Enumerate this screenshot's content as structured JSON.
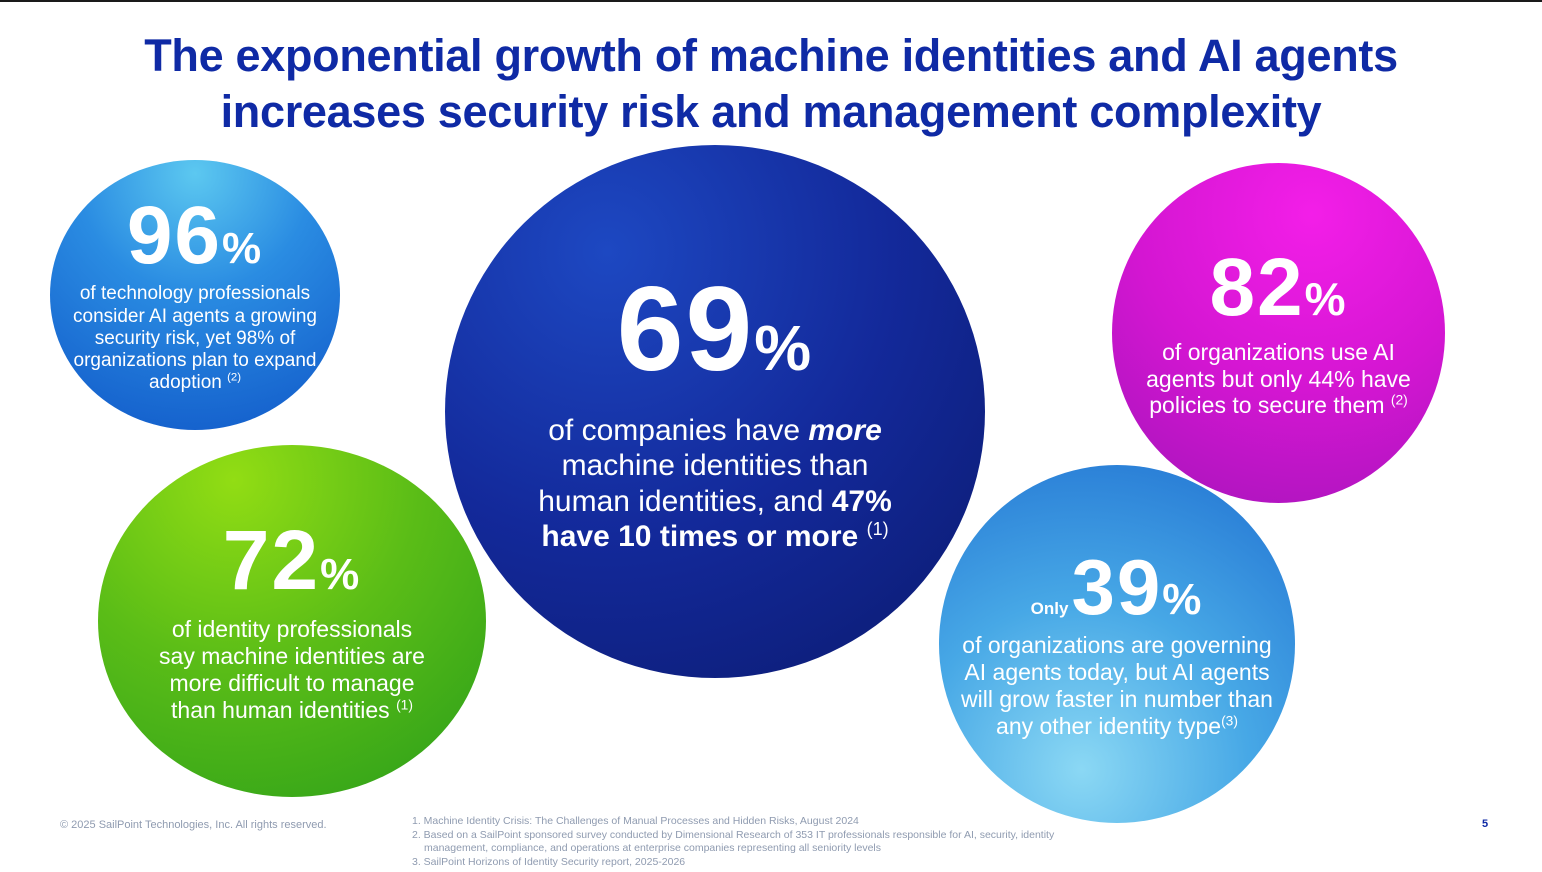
{
  "slide": {
    "title_line1": "The exponential growth of machine identities and AI agents",
    "title_line2": "increases security risk and management complexity",
    "page_number": "5",
    "copyright": "© 2025 SailPoint Technologies, Inc. All rights reserved."
  },
  "stats": {
    "s96": {
      "value": "96",
      "unit": "%",
      "text": "of technology professionals consider AI agents a growing security risk, yet 98% of organizations plan to expand adoption",
      "ref": "(2)",
      "color": "#1f7ad8"
    },
    "s72": {
      "value": "72",
      "unit": "%",
      "text": "of identity professionals say machine identities are more difficult to manage than human identities",
      "ref": "(1)",
      "color": "#4fb619"
    },
    "s69": {
      "value": "69",
      "unit": "%",
      "text_pre": "of companies have",
      "text_em": "more",
      "text_mid": "machine identities than human identities, and",
      "text_bold": "47% have 10 times or more",
      "ref": "(1)",
      "color": "#13299a"
    },
    "s82": {
      "value": "82",
      "unit": "%",
      "text": "of organizations use AI agents but only 44% have policies to secure them",
      "ref": "(2)",
      "color": "#d416d2"
    },
    "s39": {
      "prefix": "Only",
      "value": "39",
      "unit": "%",
      "text": "of organizations are governing AI agents today, but AI agents will grow faster in number than any other identity type",
      "ref": "(3)",
      "color": "#47a8e6"
    }
  },
  "footnotes": [
    "1. Machine Identity Crisis: The Challenges of Manual Processes and Hidden Risks, August 2024",
    "2. Based on a SailPoint sponsored survey conducted by Dimensional Research of 353 IT professionals responsible for AI, security, identity management, compliance, and operations at enterprise companies representing all seniority levels",
    "3. SailPoint Horizons of Identity Security report, 2025-2026"
  ],
  "colors": {
    "title": "#0f2aa5",
    "footnote": "#8f9bb0"
  }
}
